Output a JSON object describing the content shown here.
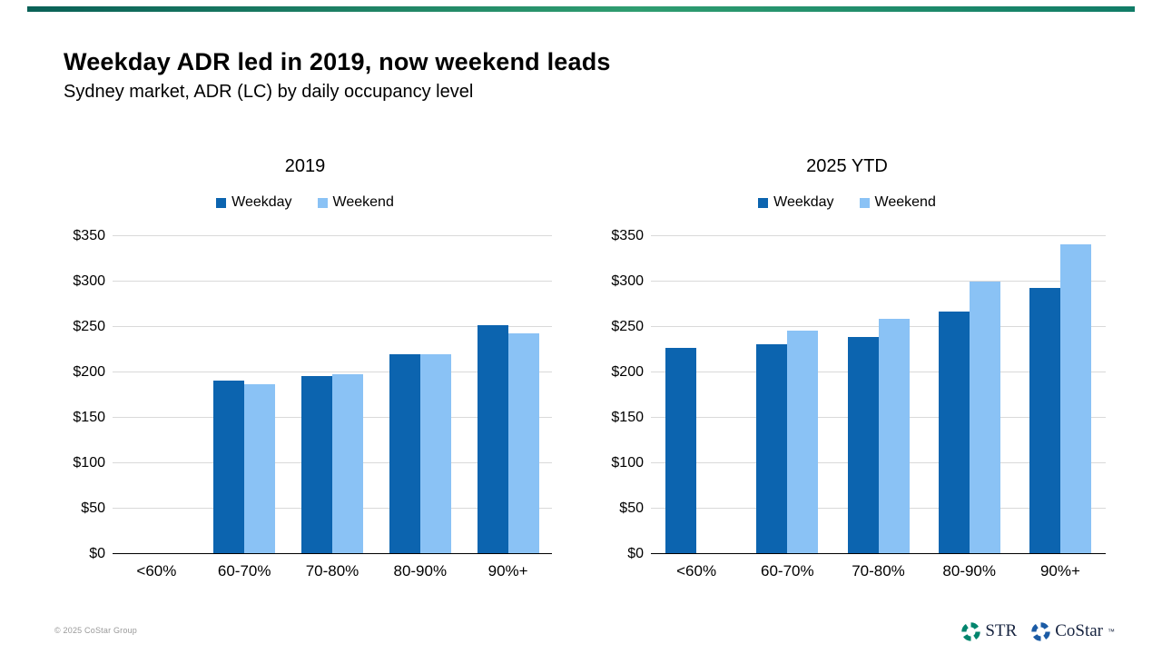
{
  "slide": {
    "title": "Weekday ADR led in 2019, now weekend leads",
    "subtitle": "Sydney market, ADR (LC) by daily occupancy level",
    "footer": {
      "copyright": "© 2025 CoStar Group"
    },
    "brand": {
      "str_label": "STR",
      "costar_label": "CoStar",
      "costar_tm": "™",
      "str_icon_color": "#00856d",
      "costar_icon_color": "#1b5ba5",
      "text_color": "#16233f"
    },
    "accent_colors": [
      "#0a6157",
      "#2f9d70",
      "#117c67"
    ]
  },
  "colors": {
    "weekday_bar": "#0c64af",
    "weekend_bar": "#8ac2f5",
    "gridline": "#d9d9d9",
    "axis": "#000000"
  },
  "chart_data": [
    {
      "type": "bar",
      "title": "2019",
      "categories": [
        "<60%",
        "60-70%",
        "70-80%",
        "80-90%",
        "90%+"
      ],
      "series": [
        {
          "name": "Weekday",
          "color": "#0c64af",
          "values": [
            null,
            191,
            196,
            220,
            252
          ]
        },
        {
          "name": "Weekend",
          "color": "#8ac2f5",
          "values": [
            null,
            187,
            198,
            220,
            243
          ]
        }
      ],
      "ylim": [
        0,
        350
      ],
      "ytick_values": [
        350,
        300,
        250,
        200,
        150,
        100,
        50,
        0
      ],
      "ytick_labels": [
        "$350",
        "$300",
        "$250",
        "$200",
        "$150",
        "$100",
        "$50",
        "$0"
      ],
      "grid": true,
      "legend_position": "top"
    },
    {
      "type": "bar",
      "title": "2025 YTD",
      "categories": [
        "<60%",
        "60-70%",
        "70-80%",
        "80-90%",
        "90%+"
      ],
      "series": [
        {
          "name": "Weekday",
          "color": "#0c64af",
          "values": [
            227,
            231,
            239,
            267,
            293
          ]
        },
        {
          "name": "Weekend",
          "color": "#8ac2f5",
          "values": [
            null,
            246,
            259,
            300,
            341
          ]
        }
      ],
      "ylim": [
        0,
        350
      ],
      "ytick_values": [
        350,
        300,
        250,
        200,
        150,
        100,
        50,
        0
      ],
      "ytick_labels": [
        "$350",
        "$300",
        "$250",
        "$200",
        "$150",
        "$100",
        "$50",
        "$0"
      ],
      "grid": true,
      "legend_position": "top"
    }
  ]
}
